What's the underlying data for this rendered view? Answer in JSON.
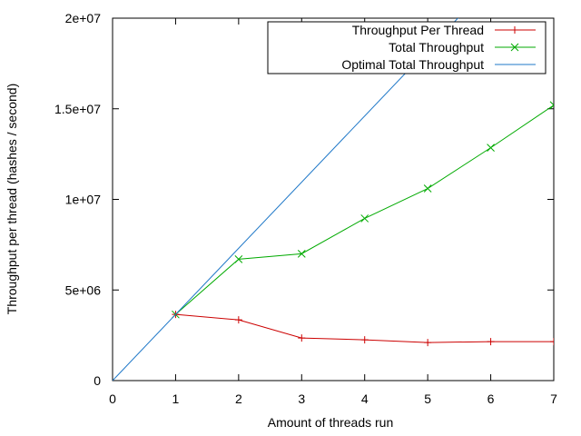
{
  "chart_data": {
    "type": "line",
    "xlabel": "Amount of threads run",
    "ylabel": "Throughput per thread (hashes / second)",
    "xlim": [
      0,
      7
    ],
    "ylim": [
      0,
      20000000
    ],
    "x_ticks": [
      0,
      1,
      2,
      3,
      4,
      5,
      6,
      7
    ],
    "x_tick_labels": [
      "0",
      "1",
      "2",
      "3",
      "4",
      "5",
      "6",
      "7"
    ],
    "y_ticks": [
      0,
      5000000,
      10000000,
      15000000,
      20000000
    ],
    "y_tick_labels": [
      "0",
      "5e+06",
      "1e+07",
      "1.5e+07",
      "2e+07"
    ],
    "grid": false,
    "legend_position": "top-right",
    "series": [
      {
        "name": "Throughput Per Thread",
        "color": "#cc0000",
        "marker": "plus",
        "x": [
          1,
          2,
          3,
          4,
          5,
          6,
          7
        ],
        "y": [
          3650000,
          3350000,
          2350000,
          2250000,
          2100000,
          2150000,
          2150000
        ]
      },
      {
        "name": "Total Throughput",
        "color": "#00aa00",
        "marker": "cross",
        "x": [
          1,
          2,
          3,
          4,
          5,
          6,
          7
        ],
        "y": [
          3650000,
          6700000,
          7000000,
          8950000,
          10600000,
          12850000,
          15200000
        ]
      },
      {
        "name": "Optimal Total Throughput",
        "color": "#1f78c8",
        "marker": "none",
        "x": [
          0,
          7
        ],
        "y": [
          0,
          25550000
        ]
      }
    ]
  }
}
